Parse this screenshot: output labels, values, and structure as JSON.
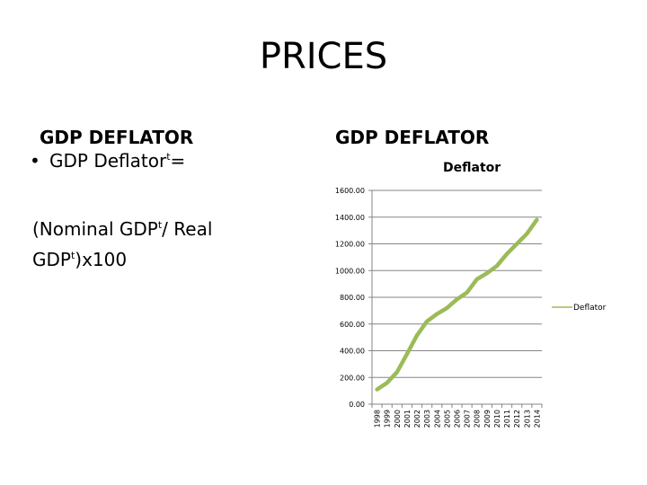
{
  "slide": {
    "title": "PRICES"
  },
  "left_panel": {
    "heading": "GDP DEFLATOR",
    "bullet_symbol": "•",
    "bullet_text": "GDP Deflator",
    "bullet_sup": "t",
    "bullet_suffix": "=",
    "formula_part1": "(Nominal GDP",
    "formula_sup1": "t",
    "formula_part2": "/ Real",
    "formula_part3": "GDP",
    "formula_sup2": "t",
    "formula_part4": ")x100"
  },
  "right_panel": {
    "heading": "GDP DEFLATOR"
  },
  "colors": {
    "series_line": "#9BBB59",
    "gridline": "#868686",
    "axis": "#868686"
  },
  "chart_data": {
    "type": "line",
    "title": "Deflator",
    "xlabel": "",
    "ylabel": "",
    "ylim": [
      0,
      1600
    ],
    "yticks": [
      0,
      200,
      400,
      600,
      800,
      1000,
      1200,
      1400,
      1600
    ],
    "ytick_labels": [
      "0.00",
      "200.00",
      "400.00",
      "600.00",
      "800.00",
      "1000.00",
      "1200.00",
      "1400.00",
      "1600.00"
    ],
    "grid": true,
    "legend_position": "right",
    "categories": [
      "1998",
      "1999",
      "2000",
      "2001",
      "2002",
      "2003",
      "2004",
      "2005",
      "2006",
      "2007",
      "2008",
      "2009",
      "2010",
      "2011",
      "2012",
      "2013",
      "2014"
    ],
    "series": [
      {
        "name": "Deflator",
        "values": [
          110,
          160,
          240,
          375,
          515,
          620,
          675,
          720,
          785,
          835,
          935,
          980,
          1035,
          1125,
          1200,
          1275,
          1380
        ]
      }
    ]
  }
}
